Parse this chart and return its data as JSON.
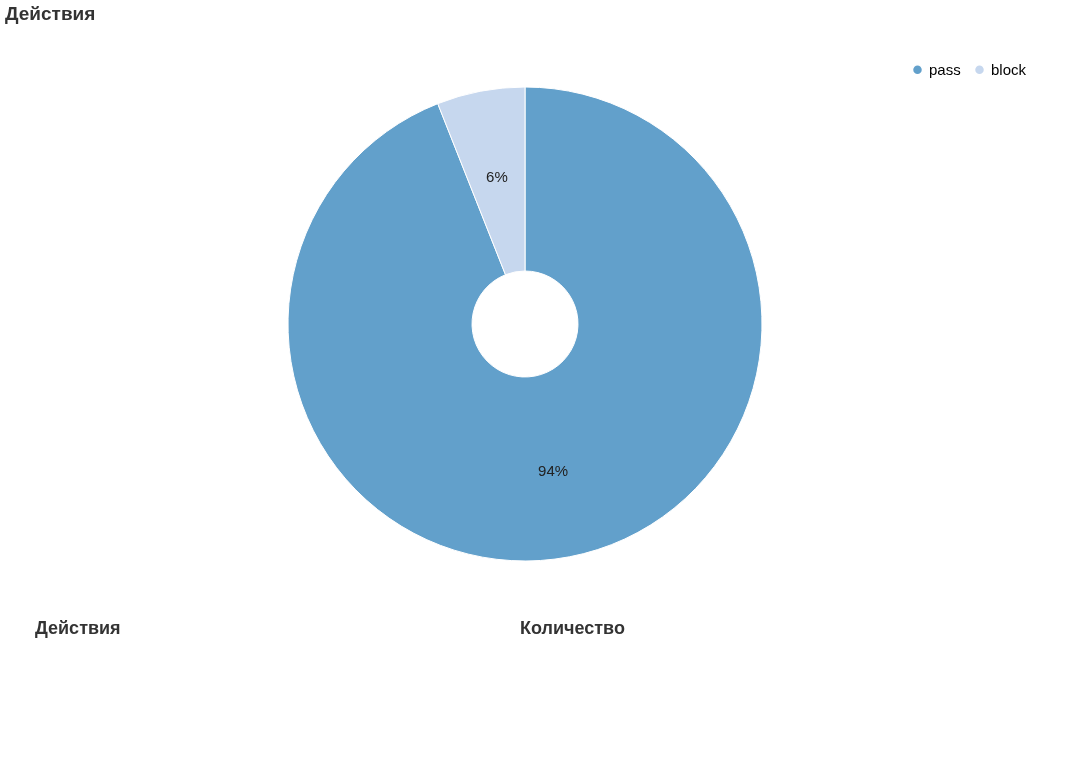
{
  "chart_data": {
    "type": "donut",
    "title": "Действия",
    "categories": [
      "pass",
      "block"
    ],
    "values": [
      94,
      6
    ],
    "colors": [
      "#62a0cb",
      "#c6d7ee"
    ],
    "value_labels": [
      "94%",
      "6%"
    ],
    "legend": "top right",
    "annotations": [
      "Действия",
      "Количество"
    ]
  }
}
